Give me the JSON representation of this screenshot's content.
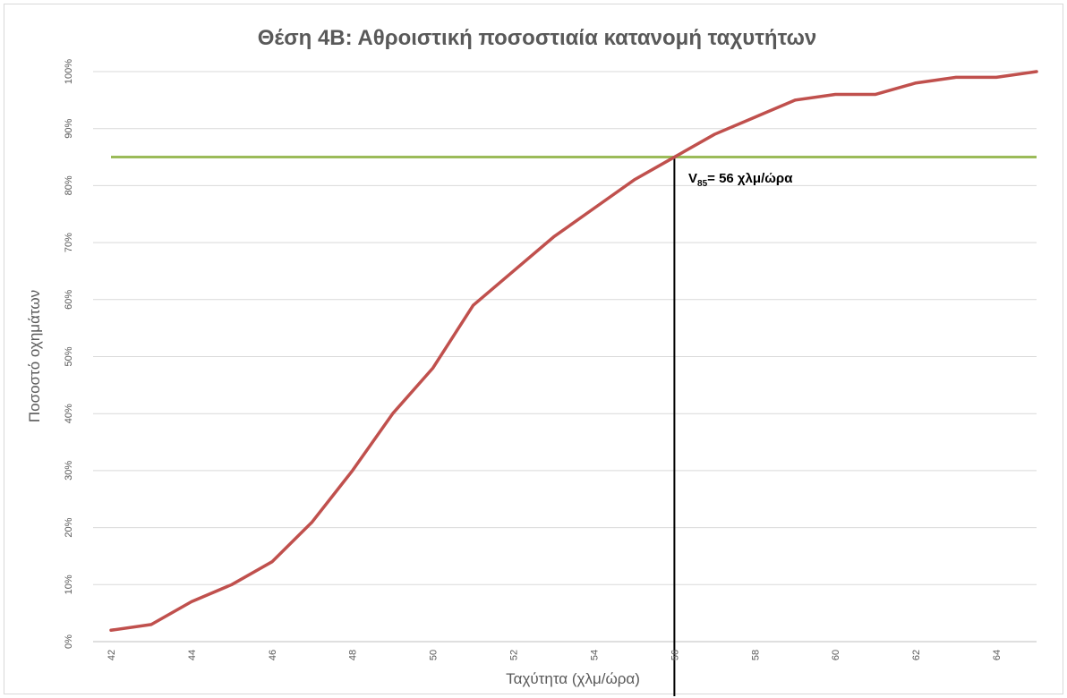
{
  "chart_data": {
    "type": "line",
    "title": "Θέση 4Β: Αθροιστική ποσοστιαία κατανομή ταχυτήτων",
    "xlabel": "Ταχύτητα (χλμ/ώρα)",
    "ylabel": "Ποσοστό οχημάτων",
    "xlim": [
      42,
      65
    ],
    "ylim": [
      0,
      100
    ],
    "x_tick_labels": [
      "42",
      "44",
      "46",
      "48",
      "50",
      "52",
      "54",
      "56",
      "58",
      "60",
      "62",
      "64"
    ],
    "y_tick_labels": [
      "0%",
      "10%",
      "20%",
      "30%",
      "40%",
      "50%",
      "60%",
      "70%",
      "80%",
      "90%",
      "100%"
    ],
    "grid": "horizontal",
    "series": [
      {
        "color": "#c0504d",
        "x": [
          42,
          43,
          44,
          45,
          46,
          47,
          48,
          49,
          50,
          51,
          52,
          53,
          54,
          55,
          56,
          57,
          58,
          59,
          60,
          61,
          62,
          63,
          64,
          65
        ],
        "y": [
          2,
          3,
          7,
          10,
          14,
          21,
          30,
          40,
          48,
          59,
          65,
          71,
          76,
          81,
          85,
          89,
          92,
          95,
          96,
          96,
          98,
          99,
          99,
          100
        ]
      }
    ],
    "reference_lines": [
      {
        "orientation": "horizontal",
        "value": 85,
        "color": "#9bbb59"
      },
      {
        "orientation": "vertical",
        "value": 56,
        "color": "#000000"
      }
    ],
    "annotation": {
      "main": "V",
      "subscript": "85",
      "rest": "= 56 χλμ/ώρα"
    }
  }
}
